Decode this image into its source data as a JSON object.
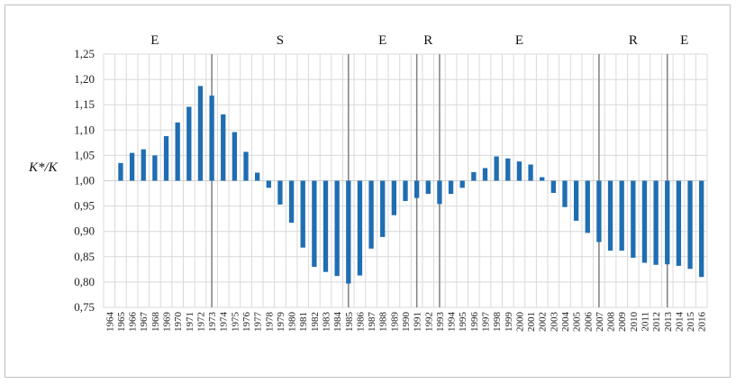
{
  "chart_data": {
    "type": "bar",
    "title": "",
    "xlabel": "",
    "ylabel": "K*/K",
    "ylim": [
      0.75,
      1.25
    ],
    "yticks": [
      "0,75",
      "0,80",
      "0,85",
      "0,90",
      "0,95",
      "1,00",
      "1,05",
      "1,10",
      "1,15",
      "1,20",
      "1,25"
    ],
    "baseline": 1.0,
    "grid": true,
    "bar_color": "#1f6eb2",
    "categories": [
      "1964",
      "1965",
      "1966",
      "1967",
      "1968",
      "1969",
      "1970",
      "1971",
      "1972",
      "1973",
      "1974",
      "1975",
      "1976",
      "1977",
      "1978",
      "1979",
      "1980",
      "1981",
      "1982",
      "1983",
      "1984",
      "1985",
      "1986",
      "1987",
      "1988",
      "1989",
      "1990",
      "1991",
      "1992",
      "1993",
      "1994",
      "1995",
      "1996",
      "1997",
      "1998",
      "1999",
      "2000",
      "2001",
      "2002",
      "2003",
      "2004",
      "2005",
      "2006",
      "2007",
      "2008",
      "2009",
      "2010",
      "2011",
      "2012",
      "2013",
      "2014",
      "2015",
      "2016"
    ],
    "values": [
      null,
      1.035,
      1.055,
      1.062,
      1.05,
      1.088,
      1.115,
      1.146,
      1.187,
      1.168,
      1.131,
      1.096,
      1.057,
      1.016,
      0.986,
      0.953,
      0.917,
      0.868,
      0.83,
      0.82,
      0.812,
      0.797,
      0.813,
      0.866,
      0.889,
      0.932,
      0.96,
      0.966,
      0.974,
      0.954,
      0.974,
      0.986,
      1.017,
      1.025,
      1.048,
      1.044,
      1.038,
      1.032,
      1.007,
      0.976,
      0.948,
      0.921,
      0.897,
      0.879,
      0.862,
      0.862,
      0.848,
      0.838,
      0.834,
      0.835,
      0.832,
      0.826,
      0.81
    ],
    "period_dividers": [
      "1973",
      "1985",
      "1991",
      "1993",
      "2007",
      "2013"
    ],
    "period_labels": [
      {
        "label": "E",
        "at": "1968"
      },
      {
        "label": "S",
        "at": "1979"
      },
      {
        "label": "E",
        "at": "1988"
      },
      {
        "label": "R",
        "at": "1992"
      },
      {
        "label": "E",
        "at": "2000"
      },
      {
        "label": "R",
        "at": "2010"
      },
      {
        "label": "E",
        "at": "2014.5"
      }
    ]
  }
}
